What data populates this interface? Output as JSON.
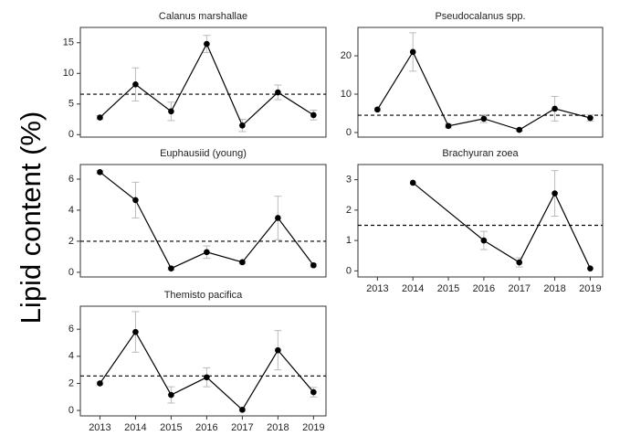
{
  "ylabel": "Lipid content (%)",
  "chart_data": [
    {
      "type": "line",
      "title": "Calanus marshallae",
      "color": "#000000",
      "error_color": "#bbbbbb",
      "x": [
        2013,
        2014,
        2015,
        2016,
        2017,
        2018,
        2019
      ],
      "values": [
        2.8,
        8.2,
        3.8,
        14.8,
        1.5,
        6.9,
        3.2
      ],
      "errors": [
        0.3,
        2.7,
        1.5,
        1.4,
        1.0,
        1.2,
        0.8
      ],
      "reference_line": 6.6,
      "xlim": [
        2012.45,
        2019.35
      ],
      "ylim": [
        -0.4,
        17.5
      ],
      "yticks": [
        0,
        5,
        10,
        15
      ]
    },
    {
      "type": "line",
      "title": "Pseudocalanus spp.",
      "color": "#000000",
      "error_color": "#bbbbbb",
      "x": [
        2013,
        2014,
        2015,
        2016,
        2017,
        2018,
        2019
      ],
      "values": [
        6,
        21,
        1.7,
        3.6,
        0.7,
        6.2,
        3.8
      ],
      "errors": [
        0.4,
        5,
        0.5,
        1.0,
        0.3,
        3.2,
        0.8
      ],
      "reference_line": 4.5,
      "xlim": [
        2012.45,
        2019.35
      ],
      "ylim": [
        -1.2,
        27.4
      ],
      "yticks": [
        0,
        10,
        20
      ]
    },
    {
      "type": "line",
      "title": "Euphausiid (young)",
      "color": "#000000",
      "error_color": "#bbbbbb",
      "x": [
        2013,
        2014,
        2015,
        2016,
        2017,
        2018,
        2019
      ],
      "values": [
        6.45,
        4.65,
        0.25,
        1.3,
        0.65,
        3.5,
        0.45
      ],
      "errors": [
        0.1,
        1.15,
        0.1,
        0.4,
        0.1,
        1.4,
        0.1
      ],
      "reference_line": 2,
      "xlim": [
        2012.45,
        2019.35
      ],
      "ylim": [
        -0.3,
        6.94
      ],
      "yticks": [
        0,
        2,
        4,
        6
      ]
    },
    {
      "type": "line",
      "title": "Brachyuran zoea",
      "color": "#000000",
      "error_color": "#bbbbbb",
      "x": [
        2014,
        2016,
        2017,
        2018,
        2019
      ],
      "values": [
        2.9,
        1.0,
        0.28,
        2.55,
        0.08
      ],
      "errors": [
        null,
        0.3,
        0.15,
        0.75,
        null
      ],
      "reference_line": 1.5,
      "xlim": [
        2012.45,
        2019.35
      ],
      "ylim": [
        -0.2,
        3.5
      ],
      "yticks": [
        0,
        1,
        2,
        3
      ],
      "xticks": [
        2013,
        2014,
        2015,
        2016,
        2017,
        2018,
        2019
      ]
    },
    {
      "type": "line",
      "title": "Themisto pacifica",
      "color": "#000000",
      "error_color": "#bbbbbb",
      "x": [
        2013,
        2014,
        2015,
        2016,
        2017,
        2018,
        2019
      ],
      "values": [
        2.0,
        5.8,
        1.15,
        2.45,
        0.05,
        4.45,
        1.35
      ],
      "errors": [
        0.1,
        1.5,
        0.6,
        0.7,
        0.1,
        1.45,
        0.35
      ],
      "reference_line": 2.55,
      "xlim": [
        2012.45,
        2019.35
      ],
      "ylim": [
        -0.4,
        7.7
      ],
      "yticks": [
        0,
        2,
        4,
        6
      ],
      "xticks": [
        2013,
        2014,
        2015,
        2016,
        2017,
        2018,
        2019
      ]
    }
  ]
}
